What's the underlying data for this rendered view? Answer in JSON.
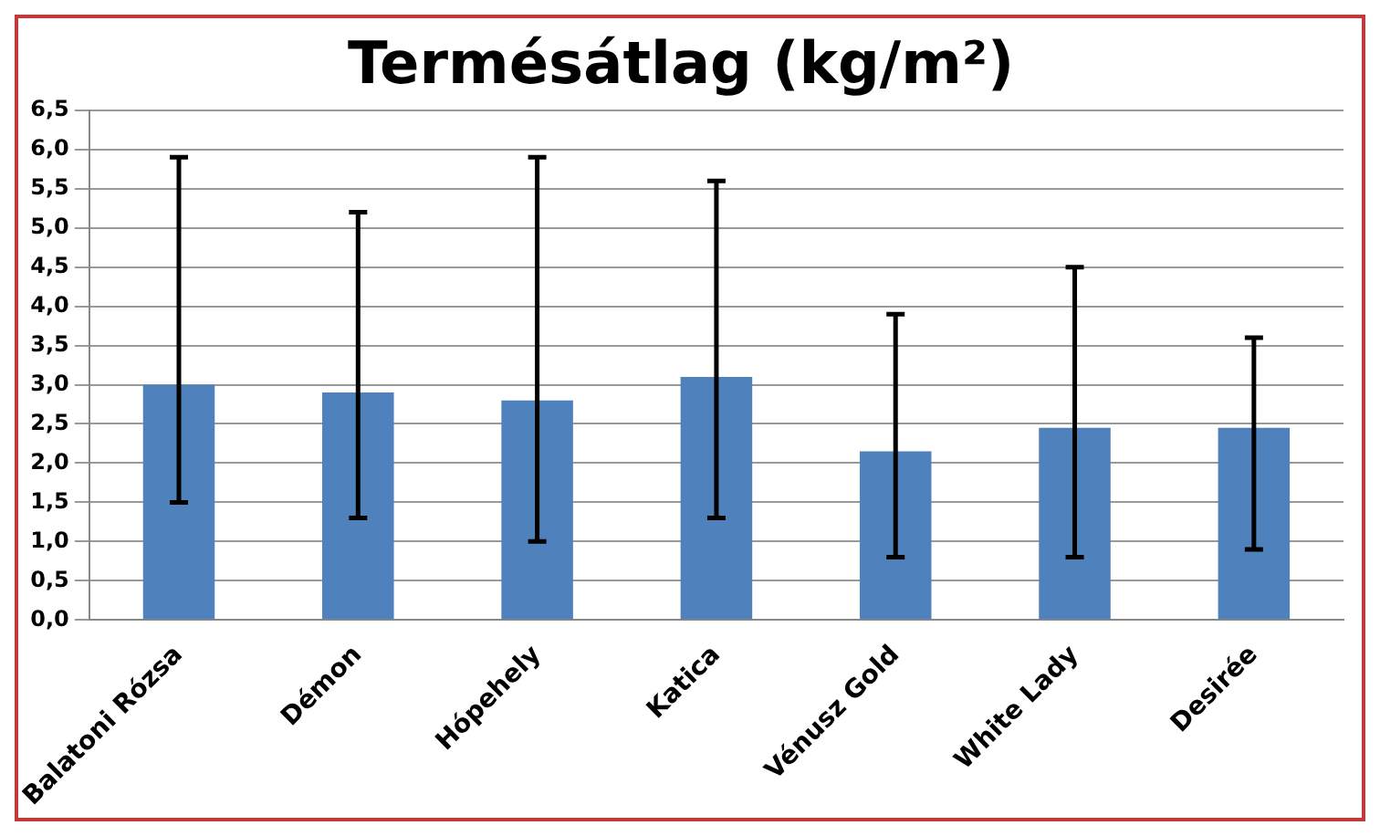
{
  "chart_data": {
    "type": "bar",
    "title": "Termésátlag (kg/m²)",
    "categories": [
      "Balatoni Rózsa",
      "Démon",
      "Hópehely",
      "Katica",
      "Vénusz Gold",
      "White Lady",
      "Desirée"
    ],
    "values": [
      3.0,
      2.9,
      2.8,
      3.1,
      2.15,
      2.45,
      2.45
    ],
    "errors": [
      [
        1.5,
        5.9
      ],
      [
        1.3,
        5.2
      ],
      [
        1.0,
        5.9
      ],
      [
        1.3,
        5.6
      ],
      [
        0.8,
        3.9
      ],
      [
        0.8,
        4.5
      ],
      [
        0.9,
        3.6
      ]
    ],
    "color": "#4f81bd",
    "ylim": [
      0,
      6.5
    ],
    "yticks": [
      {
        "value": 0,
        "label": "0,0"
      },
      {
        "value": 0.5,
        "label": "0,5"
      },
      {
        "value": 1,
        "label": "1,0"
      },
      {
        "value": 1.5,
        "label": "1,5"
      },
      {
        "value": 2,
        "label": "2,0"
      },
      {
        "value": 2.5,
        "label": "2,5"
      },
      {
        "value": 3,
        "label": "3,0"
      },
      {
        "value": 3.5,
        "label": "3,5"
      },
      {
        "value": 4,
        "label": "4,0"
      },
      {
        "value": 4.5,
        "label": "4,5"
      },
      {
        "value": 5,
        "label": "5,0"
      },
      {
        "value": 5.5,
        "label": "5,5"
      },
      {
        "value": 6,
        "label": "6,0"
      },
      {
        "value": 6.5,
        "label": "6,5"
      }
    ],
    "grid": "y",
    "legend": false
  }
}
